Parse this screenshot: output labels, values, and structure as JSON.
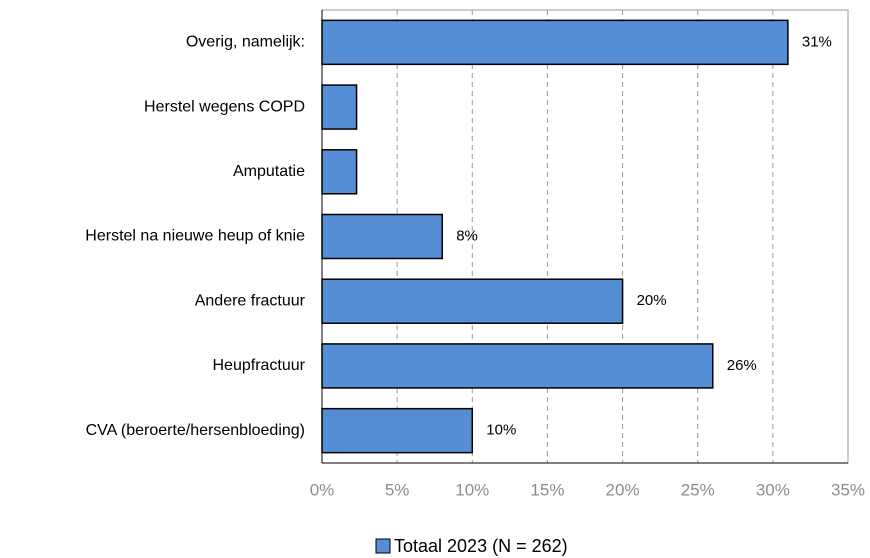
{
  "chart_data": {
    "type": "hbar",
    "categories": [
      "Overig, namelijk:",
      "Herstel wegens COPD",
      "Amputatie",
      "Herstel na nieuwe heup of knie",
      "Andere fractuur",
      "Heupfractuur",
      "CVA (beroerte/hersenbloeding)"
    ],
    "series": [
      {
        "name": "Totaal 2023 (N = 262)",
        "color": "#558ed5",
        "values": [
          31,
          2.3,
          2.3,
          8,
          20,
          26,
          10
        ],
        "value_labels": [
          "31%",
          null,
          null,
          "8%",
          "20%",
          "26%",
          "10%"
        ]
      }
    ],
    "xlim": [
      0,
      35
    ],
    "xticks": [
      {
        "value": 0,
        "label": "0%"
      },
      {
        "value": 5,
        "label": "5%"
      },
      {
        "value": 10,
        "label": "10%"
      },
      {
        "value": 15,
        "label": "15%"
      },
      {
        "value": 20,
        "label": "20%"
      },
      {
        "value": 25,
        "label": "25%"
      },
      {
        "value": 30,
        "label": "30%"
      },
      {
        "value": 35,
        "label": "35%"
      }
    ],
    "grid": true,
    "legend": "bottom"
  }
}
